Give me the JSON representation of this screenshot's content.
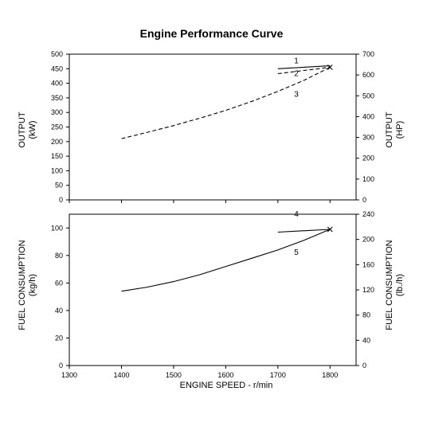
{
  "chart_data": {
    "type": "line",
    "title": "Engine Performance Curve",
    "xlabel": "ENGINE SPEED - r/min",
    "x_ticks": [
      1300,
      1400,
      1500,
      1600,
      1700,
      1800
    ],
    "xlim": [
      1300,
      1850
    ],
    "panels": [
      {
        "ylabel_left": [
          "OUTPUT",
          "(kW)"
        ],
        "ylabel_right": [
          "OUTPUT",
          "(HP)"
        ],
        "ylim_left": [
          0,
          500
        ],
        "y_ticks_left": [
          0,
          50,
          100,
          150,
          200,
          250,
          300,
          350,
          400,
          450,
          500
        ],
        "ylim_right": [
          0,
          700
        ],
        "y_ticks_right": [
          0,
          100,
          200,
          300,
          400,
          500,
          600,
          700
        ],
        "series": [
          {
            "name": "1",
            "dashed": false,
            "x": [
              1700,
              1800
            ],
            "y": [
              450,
              460
            ]
          },
          {
            "name": "2",
            "dashed": true,
            "x": [
              1700,
              1800
            ],
            "y": [
              433,
              455
            ]
          },
          {
            "name": "3",
            "dashed": true,
            "x": [
              1400,
              1450,
              1500,
              1550,
              1600,
              1650,
              1700,
              1750,
              1800
            ],
            "y": [
              210,
              232,
              255,
              280,
              307,
              338,
              372,
              410,
              455
            ]
          }
        ],
        "annotations": [
          "1",
          "2",
          "3"
        ]
      },
      {
        "ylabel_left": [
          "FUEL CONSUMPTION",
          "(kg/h)"
        ],
        "ylabel_right": [
          "FUEL CONSUMPTION",
          "(lb./h)"
        ],
        "ylim_left": [
          0,
          110
        ],
        "y_ticks_left": [
          0,
          20,
          40,
          60,
          80,
          100
        ],
        "ylim_right": [
          0,
          240
        ],
        "y_ticks_right": [
          0,
          40,
          80,
          120,
          160,
          200,
          240
        ],
        "series": [
          {
            "name": "4",
            "dashed": false,
            "x": [
              1700,
              1800
            ],
            "y": [
              97,
              99
            ]
          },
          {
            "name": "5",
            "dashed": false,
            "x": [
              1400,
              1450,
              1500,
              1550,
              1600,
              1650,
              1700,
              1750,
              1800
            ],
            "y": [
              54,
              57,
              61,
              66,
              72,
              78,
              84,
              91,
              99
            ]
          }
        ],
        "annotations": [
          "4",
          "5"
        ]
      }
    ],
    "grid": false
  }
}
